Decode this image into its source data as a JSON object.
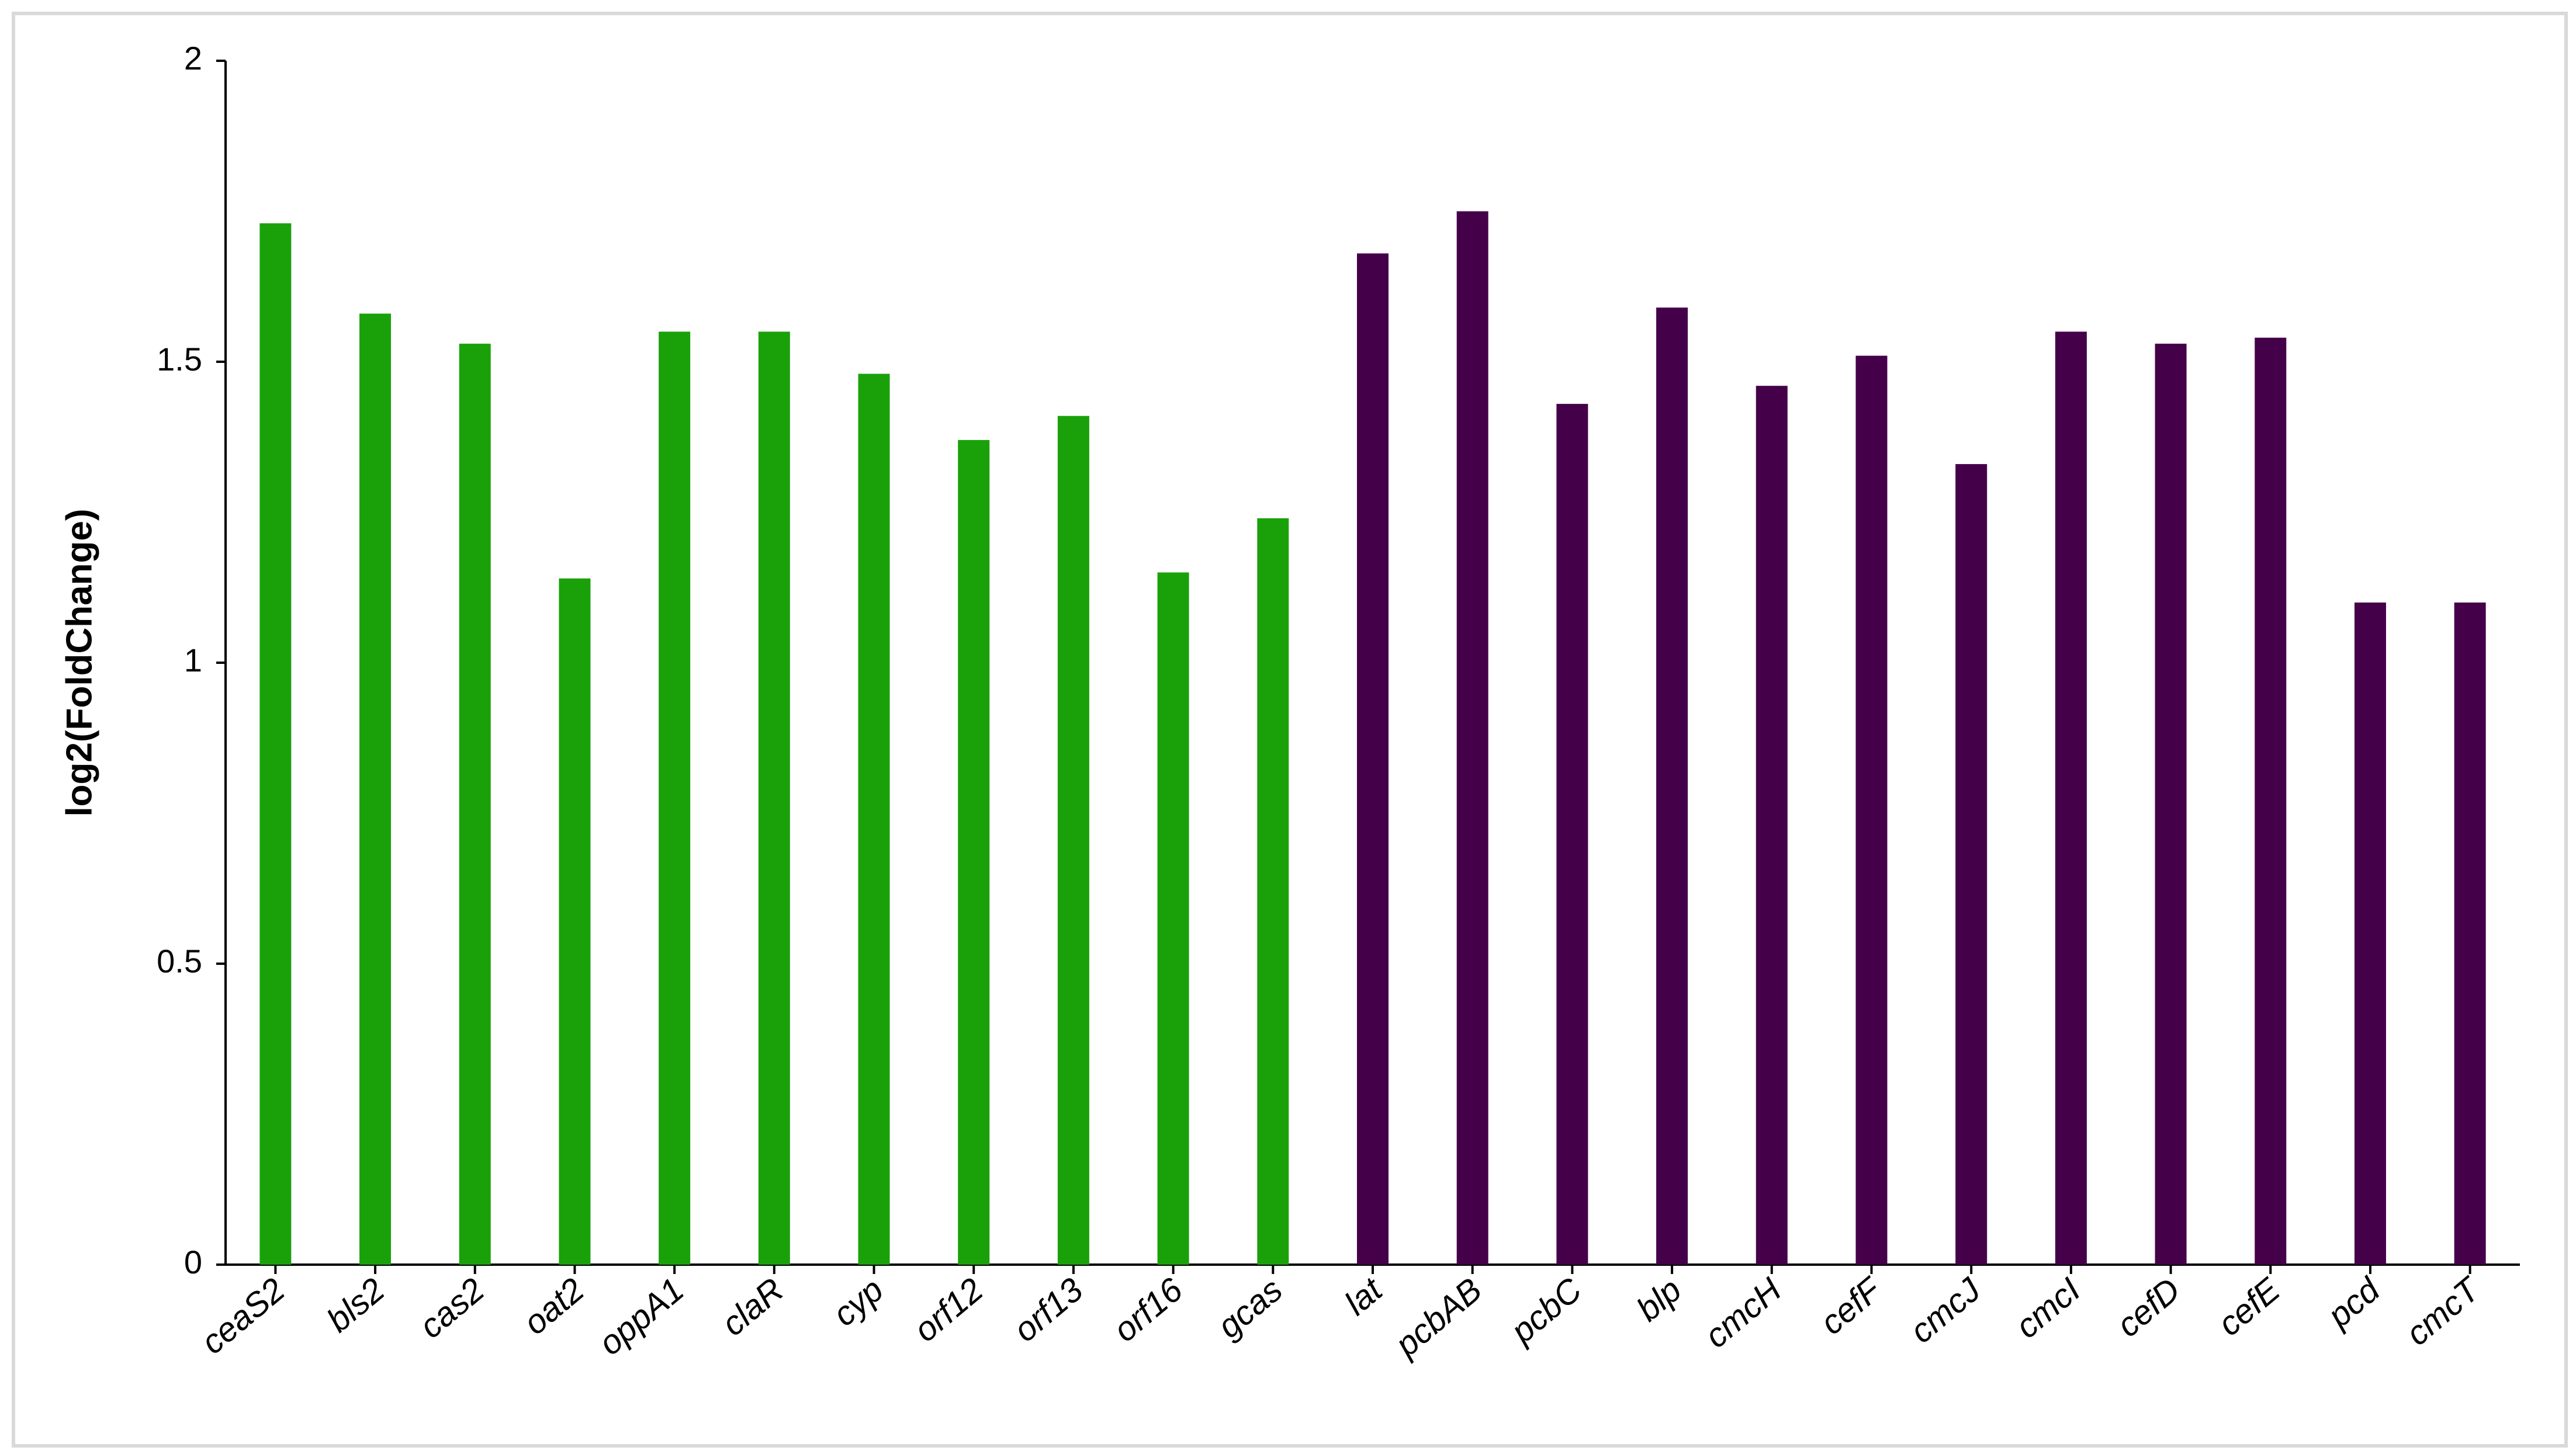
{
  "chart_data": {
    "type": "bar",
    "y_label": "log2(FoldChange)",
    "categories": [
      "ceaS2",
      "bls2",
      "cas2",
      "oat2",
      "oppA1",
      "claR",
      "cyp",
      "orf12",
      "orf13",
      "orf16",
      "gcas",
      "lat",
      "pcbAB",
      "pcbC",
      "blp",
      "cmcH",
      "cefF",
      "cmcJ",
      "cmcI",
      "cefD",
      "cefE",
      "pcd",
      "cmcT"
    ],
    "values": [
      1.73,
      1.58,
      1.53,
      1.14,
      1.55,
      1.55,
      1.48,
      1.37,
      1.41,
      1.15,
      1.24,
      1.68,
      1.75,
      1.43,
      1.59,
      1.46,
      1.51,
      1.33,
      1.55,
      1.53,
      1.54,
      1.1,
      1.1
    ],
    "colors": [
      "#1aa10a",
      "#1aa10a",
      "#1aa10a",
      "#1aa10a",
      "#1aa10a",
      "#1aa10a",
      "#1aa10a",
      "#1aa10a",
      "#1aa10a",
      "#1aa10a",
      "#1aa10a",
      "#45004a",
      "#45004a",
      "#45004a",
      "#45004a",
      "#45004a",
      "#45004a",
      "#45004a",
      "#45004a",
      "#45004a",
      "#45004a",
      "#45004a",
      "#45004a"
    ],
    "ylim": [
      0,
      2
    ],
    "yticks": [
      0,
      0.5,
      1,
      1.5,
      2
    ],
    "grid": false
  }
}
